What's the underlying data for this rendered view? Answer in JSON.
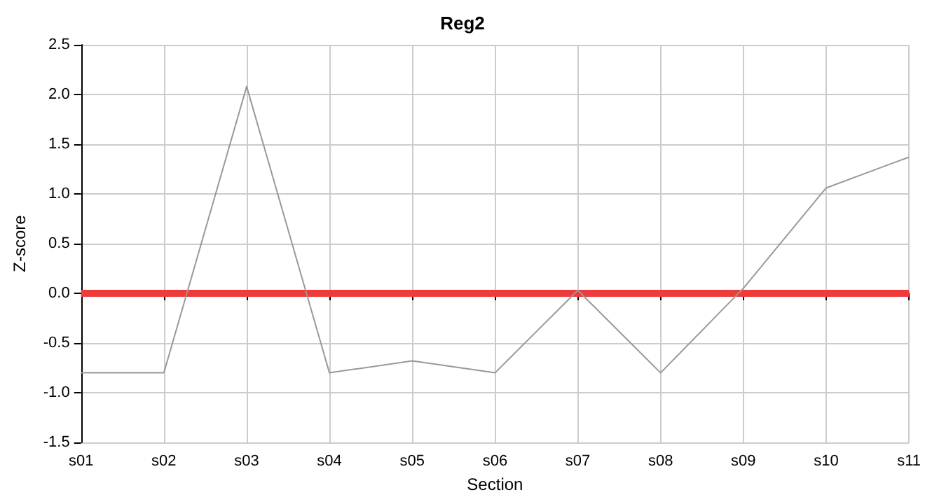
{
  "chart_data": {
    "type": "line",
    "title": "Reg2",
    "xlabel": "Section",
    "ylabel": "Z-score",
    "categories": [
      "s01",
      "s02",
      "s03",
      "s04",
      "s05",
      "s06",
      "s07",
      "s08",
      "s09",
      "s10",
      "s11"
    ],
    "series": [
      {
        "color": "#999999",
        "values": [
          -0.8,
          -0.8,
          2.08,
          -0.8,
          -0.68,
          -0.8,
          0.03,
          -0.8,
          0.05,
          1.06,
          1.37
        ]
      }
    ],
    "ylim": [
      -1.5,
      2.5
    ],
    "yticks": [
      {
        "value": -1.5,
        "label": "-1.5"
      },
      {
        "value": -1,
        "label": "-1.0"
      },
      {
        "value": -0.5,
        "label": "-0.5"
      },
      {
        "value": 0,
        "label": "0.0"
      },
      {
        "value": 0.5,
        "label": "0.5"
      },
      {
        "value": 1,
        "label": "1.0"
      },
      {
        "value": 1.5,
        "label": "1.5"
      },
      {
        "value": 2,
        "label": "2.0"
      },
      {
        "value": 2.5,
        "label": "2.5"
      }
    ],
    "ref_lines": [
      {
        "axis": "y",
        "value": 0,
        "color": "#ee3b3b"
      }
    ],
    "grid": true,
    "marker": "none",
    "line_style": "solid"
  }
}
